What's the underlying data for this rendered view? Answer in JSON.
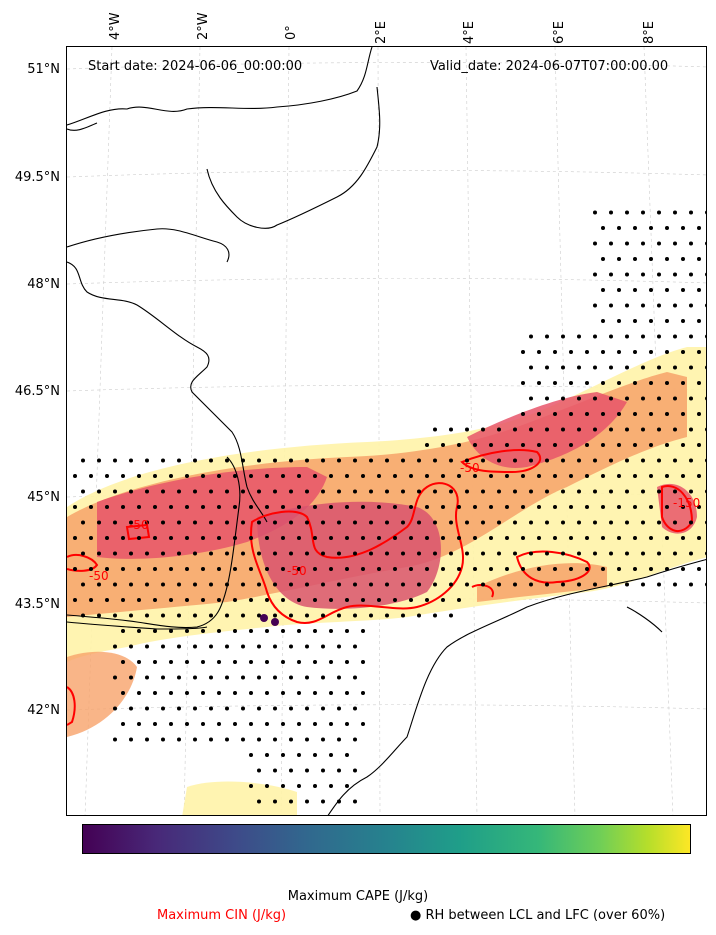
{
  "map": {
    "start_date": "Start date: 2024-06-06_00:00:00",
    "valid_date": "Valid_date: 2024-06-07T07:00:00.00",
    "lat_labels": [
      "51°N",
      "49.5°N",
      "48°N",
      "46.5°N",
      "45°N",
      "43.5°N",
      "42°N"
    ],
    "lon_labels": [
      "4°W",
      "2°W",
      "0°",
      "2°E",
      "4°E",
      "6°E",
      "8°E"
    ],
    "contour_labels": [
      "-50",
      "-50",
      "-50",
      "-50",
      "-150"
    ],
    "colors": {
      "cin": "#ff0000",
      "cape_low": "#fff3a8",
      "cape_mid": "#f7a26a",
      "cape_high": "#e8556a",
      "coast": "#000000"
    }
  },
  "colorbar": {
    "label": "Maximum CAPE (J/kg)",
    "colormap": "viridis"
  },
  "legend": {
    "cin_label": "Maximum CIN (J/kg)",
    "rh_label": "● RH between LCL and LFC (over 60%)"
  }
}
